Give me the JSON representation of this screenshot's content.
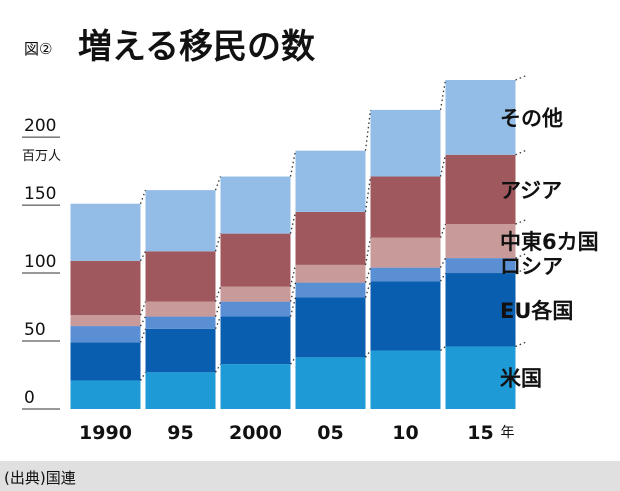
{
  "chart_data": {
    "type": "stacked_bar",
    "figure_label": "図②",
    "title": "増える移民の数",
    "y_unit": "百万人",
    "x_unit": "年",
    "source": "(出典)国連",
    "categories": [
      "1990",
      "95",
      "2000",
      "05",
      "10",
      "15"
    ],
    "series": [
      {
        "name": "米国",
        "color": "#1e9ad6",
        "values": [
          21,
          27,
          33,
          38,
          43,
          46
        ]
      },
      {
        "name": "EU各国",
        "color": "#0a5eb0",
        "values": [
          28,
          32,
          35,
          44,
          51,
          54
        ]
      },
      {
        "name": "ロシア",
        "color": "#5b8fd4",
        "values": [
          12,
          9,
          11,
          11,
          10,
          11
        ]
      },
      {
        "name": "中東6カ国",
        "color": "#c99a9a",
        "values": [
          8,
          11,
          11,
          13,
          22,
          25
        ]
      },
      {
        "name": "アジア",
        "color": "#a0585f",
        "values": [
          40,
          37,
          39,
          39,
          45,
          51
        ]
      },
      {
        "name": "その他",
        "color": "#93bde6",
        "values": [
          42,
          45,
          42,
          45,
          49,
          55
        ]
      }
    ],
    "ylim": [
      0,
      242
    ],
    "yticks": [
      0,
      50,
      100,
      150,
      200
    ]
  }
}
